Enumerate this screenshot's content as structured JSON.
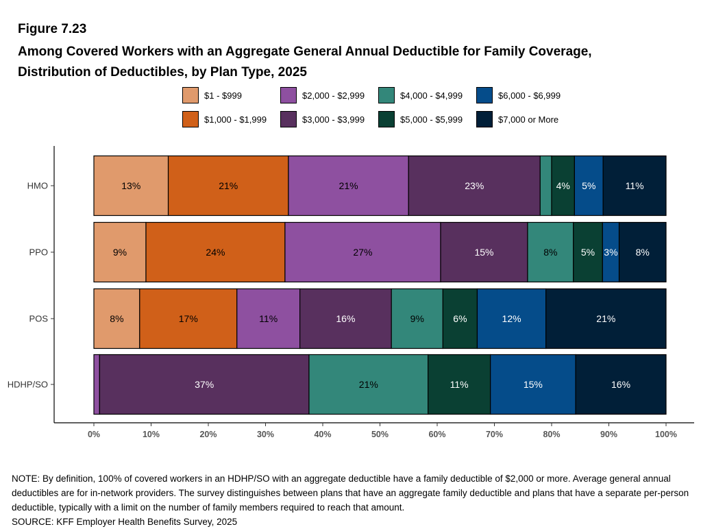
{
  "figure_label": "Figure 7.23",
  "title_line1": "Among Covered Workers with an Aggregate General Annual Deductible for Family Coverage,",
  "title_line2": "Distribution of Deductibles, by Plan Type, 2025",
  "note_text": "NOTE: By definition, 100% of covered workers in an HDHP/SO with an aggregate deductible have a family deductible of $2,000 or more. Average general annual deductibles are for in-network providers. The survey distinguishes between plans that have an aggregate family deductible and plans that have a separate per-person deductible, typically with a limit on the number of family members required to reach that amount.",
  "source_text": "SOURCE: KFF Employer Health Benefits Survey, 2025",
  "chart_data": {
    "type": "bar",
    "orientation": "horizontal",
    "stacked": true,
    "categories": [
      "HMO",
      "PPO",
      "POS",
      "HDHP/SO"
    ],
    "xlim": [
      0,
      100
    ],
    "x_ticks": [
      "0%",
      "10%",
      "20%",
      "30%",
      "40%",
      "50%",
      "60%",
      "70%",
      "80%",
      "90%",
      "100%"
    ],
    "legend_position": "top",
    "grid": false,
    "series": [
      {
        "name": "$1 - $999",
        "color": "#E09A6C",
        "label_color": "#000000",
        "values": [
          13,
          9.1,
          8,
          0
        ],
        "labels": [
          "13%",
          "9%",
          "8%",
          ""
        ]
      },
      {
        "name": "$1,000 - $1,999",
        "color": "#D06019",
        "label_color": "#000000",
        "values": [
          21,
          24.3,
          17,
          0
        ],
        "labels": [
          "21%",
          "24%",
          "17%",
          ""
        ]
      },
      {
        "name": "$2,000 - $2,999",
        "color": "#8E50A0",
        "label_color": "#000000",
        "values": [
          21,
          27.2,
          11,
          1
        ],
        "labels": [
          "21%",
          "27%",
          "11%",
          ""
        ]
      },
      {
        "name": "$3,000 - $3,999",
        "color": "#58305E",
        "label_color": "#ffffff",
        "values": [
          23,
          15.2,
          16,
          36.6
        ],
        "labels": [
          "23%",
          "15%",
          "16%",
          "37%"
        ]
      },
      {
        "name": "$4,000 - $4,999",
        "color": "#33877A",
        "label_color": "#000000",
        "values": [
          2,
          8,
          9,
          20.8
        ],
        "labels": [
          "",
          "8%",
          "9%",
          "21%"
        ]
      },
      {
        "name": "$5,000 - $5,999",
        "color": "#0A4033",
        "label_color": "#ffffff",
        "values": [
          4,
          5.1,
          6,
          10.9
        ],
        "labels": [
          "4%",
          "5%",
          "6%",
          "11%"
        ]
      },
      {
        "name": "$6,000 - $6,999",
        "color": "#054C8A",
        "label_color": "#ffffff",
        "values": [
          5,
          2.9,
          12,
          14.9
        ],
        "labels": [
          "5%",
          "3%",
          "12%",
          "15%"
        ]
      },
      {
        "name": "$7,000 or More",
        "color": "#011F38",
        "label_color": "#ffffff",
        "values": [
          11,
          8.2,
          21,
          15.8
        ],
        "labels": [
          "11%",
          "8%",
          "21%",
          "16%"
        ]
      }
    ]
  }
}
